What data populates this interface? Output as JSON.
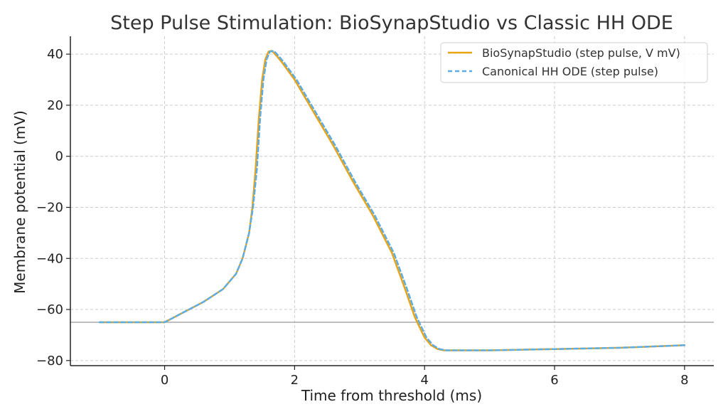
{
  "chart_data": {
    "type": "line",
    "title": "Step Pulse Stimulation: BioSynapStudio vs Classic HH ODE",
    "xlabel": "Time from threshold (ms)",
    "ylabel": "Membrane potential (mV)",
    "xlim": [
      -1.45,
      8.45
    ],
    "ylim": [
      -82,
      47
    ],
    "xticks": [
      0,
      2,
      4,
      6,
      8
    ],
    "yticks": [
      -80,
      -60,
      -40,
      -20,
      0,
      20,
      40
    ],
    "ytick_labels": [
      "−80",
      "−60",
      "−40",
      "−20",
      "0",
      "20",
      "40"
    ],
    "xtick_labels": [
      "0",
      "2",
      "4",
      "6",
      "8"
    ],
    "grid": true,
    "legend_position": "top-right",
    "reference_line": {
      "orientation": "horizontal",
      "y": -65,
      "color": "#999999"
    },
    "series": [
      {
        "name": "BioSynapStudio (step pulse, V mV)",
        "color": "#E8A317",
        "style": "solid",
        "x": [
          -1,
          0,
          0.3,
          0.6,
          0.9,
          1.1,
          1.2,
          1.3,
          1.35,
          1.4,
          1.45,
          1.5,
          1.55,
          1.6,
          1.65,
          1.7,
          1.8,
          2.0,
          2.3,
          2.6,
          2.9,
          3.2,
          3.5,
          3.7,
          3.85,
          4.0,
          4.1,
          4.2,
          4.3,
          4.5,
          5.0,
          6.0,
          7.0,
          8.0
        ],
        "y": [
          -65,
          -65,
          -61,
          -57,
          -52,
          -46,
          -40,
          -30,
          -20,
          -5,
          15,
          30,
          38,
          41,
          41.3,
          40,
          37,
          30,
          17,
          4,
          -10,
          -23,
          -38,
          -52,
          -63,
          -71,
          -74,
          -75.5,
          -76,
          -76,
          -76,
          -75.5,
          -75,
          -74
        ]
      },
      {
        "name": "Canonical HH ODE (step pulse)",
        "color": "#5DADE2",
        "style": "dashed",
        "x": [
          -1,
          0,
          0.3,
          0.6,
          0.9,
          1.1,
          1.2,
          1.3,
          1.36,
          1.42,
          1.47,
          1.52,
          1.57,
          1.62,
          1.68,
          1.73,
          1.83,
          2.03,
          2.33,
          2.63,
          2.93,
          3.23,
          3.53,
          3.73,
          3.88,
          4.03,
          4.13,
          4.23,
          4.33,
          4.5,
          5.0,
          6.0,
          7.0,
          8.0
        ],
        "y": [
          -65,
          -65,
          -61,
          -57,
          -52,
          -46,
          -40,
          -30,
          -20,
          -5,
          15,
          30,
          38,
          41,
          41.3,
          40,
          37,
          30,
          17,
          4,
          -10,
          -23,
          -38,
          -52,
          -63,
          -71,
          -74,
          -75.5,
          -76,
          -76,
          -76,
          -75.5,
          -75,
          -74
        ]
      }
    ]
  }
}
